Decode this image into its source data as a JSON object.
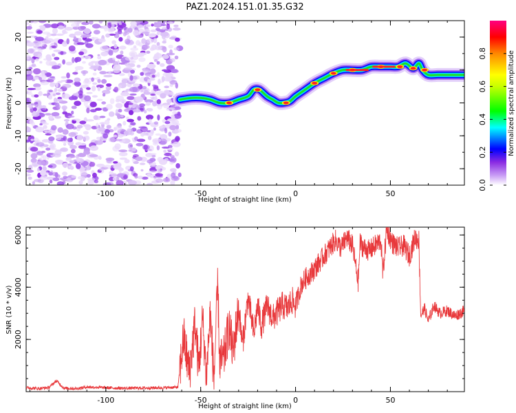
{
  "title": "PAZ1.2024.151.01.35.G32",
  "chart_data": [
    {
      "type": "heatmap",
      "xlabel": "Height of straight line (km)",
      "ylabel": "Frequency (Hz)",
      "xlim": [
        -142,
        89
      ],
      "ylim": [
        -25,
        25
      ],
      "xticks": [
        -100,
        -50,
        0,
        50
      ],
      "yticks": [
        -20,
        -10,
        0,
        10,
        20
      ],
      "noise_region_x": [
        -142,
        -61
      ],
      "ridge": {
        "x": [
          -61,
          -55,
          -50,
          -45,
          -40,
          -35,
          -30,
          -25,
          -22,
          -19,
          -15,
          -12,
          -9,
          -6,
          -3,
          0,
          5,
          10,
          15,
          20,
          25,
          30,
          35,
          40,
          45,
          50,
          54,
          58,
          62,
          65,
          67,
          70,
          75,
          80,
          85,
          89
        ],
        "y": [
          1,
          1.5,
          1.5,
          1,
          0,
          0,
          1,
          2,
          4,
          4,
          2,
          1,
          0,
          0,
          0.5,
          2,
          4,
          6,
          7.5,
          9,
          10,
          10,
          10,
          11,
          11,
          11,
          11,
          12,
          10.5,
          12,
          10,
          8.5,
          8.5,
          8.5,
          8.5,
          8.5
        ]
      },
      "colorbar": {
        "label": "Normalized spectral amplitude",
        "range": [
          0,
          1
        ],
        "ticks": [
          0.0,
          0.2,
          0.4,
          0.6,
          0.8
        ],
        "tick_labels": [
          "0.0",
          "0.2",
          "0.4",
          "0.6",
          "0.8"
        ],
        "colors": [
          "#ffffff",
          "#8a2be2",
          "#0000ff",
          "#00ffff",
          "#00ff00",
          "#ffff00",
          "#ff8800",
          "#ff0000",
          "#ff0080"
        ]
      }
    },
    {
      "type": "line",
      "xlabel": "Height of straight line (km)",
      "ylabel": "SNR (10 * v/v)",
      "xlim": [
        -142,
        89
      ],
      "ylim": [
        0,
        6300
      ],
      "xticks": [
        -100,
        -50,
        0,
        50
      ],
      "yticks": [
        2000,
        4000,
        6000
      ],
      "color": "#e8383b",
      "series": [
        {
          "x": [
            -142,
            -135,
            -130,
            -126,
            -122,
            -115,
            -110,
            -100,
            -90,
            -80,
            -70,
            -62,
            -59,
            -56,
            -53,
            -51,
            -49,
            -47,
            -45,
            -43,
            -41,
            -40,
            -38,
            -35,
            -33,
            -30,
            -28,
            -25,
            -22,
            -20,
            -18,
            -15,
            -12,
            -10,
            -7,
            -4,
            -2,
            0,
            3,
            6,
            9,
            12,
            15,
            18,
            21,
            24,
            27,
            30,
            33,
            34,
            36,
            39,
            42,
            45,
            46,
            48,
            51,
            54,
            57,
            60,
            63,
            65,
            66,
            68,
            70,
            73,
            76,
            80,
            84,
            89
          ],
          "y": [
            150,
            120,
            160,
            420,
            130,
            120,
            180,
            150,
            130,
            140,
            150,
            170,
            2100,
            700,
            2600,
            900,
            2800,
            600,
            3000,
            500,
            4050,
            1200,
            1200,
            2500,
            1500,
            3200,
            1800,
            3600,
            2200,
            3300,
            2500,
            3300,
            2800,
            3000,
            3300,
            3200,
            3500,
            3300,
            4100,
            4400,
            4600,
            4900,
            5200,
            5500,
            5800,
            5500,
            5900,
            5600,
            4200,
            5700,
            5500,
            5400,
            5600,
            5800,
            4500,
            6200,
            5700,
            5500,
            5600,
            5200,
            5900,
            5800,
            2900,
            3200,
            2700,
            3300,
            3000,
            3100,
            2900,
            3100
          ]
        }
      ]
    }
  ]
}
